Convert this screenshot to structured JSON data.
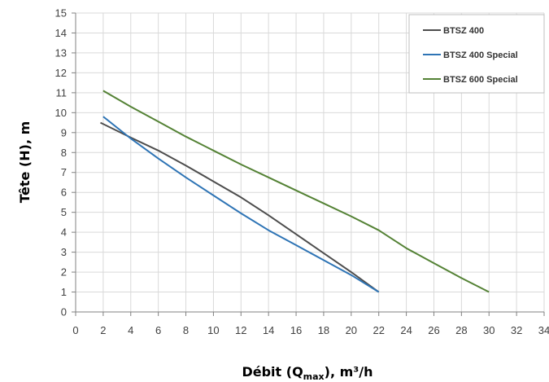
{
  "chart_data": {
    "type": "line",
    "title": "",
    "ylabel": "Tête (H), m",
    "xlabel": {
      "prefix": "Débit (Q",
      "subscript": "max",
      "suffix": "), m³/h"
    },
    "xlim": [
      0,
      34
    ],
    "ylim": [
      0,
      15
    ],
    "x_ticks": [
      "0",
      "2",
      "4",
      "6",
      "8",
      "10",
      "12",
      "14",
      "16",
      "18",
      "20",
      "22",
      "24",
      "26",
      "28",
      "30",
      "32",
      "34"
    ],
    "y_ticks": [
      "0",
      "1",
      "2",
      "3",
      "4",
      "5",
      "6",
      "7",
      "8",
      "9",
      "10",
      "11",
      "12",
      "13",
      "14",
      "15"
    ],
    "grid": "both",
    "legend_position": "top-right",
    "series": [
      {
        "name": "BTSZ 400",
        "color": "#4d4d4d",
        "points": [
          [
            1.8,
            9.5
          ],
          [
            4,
            8.75
          ],
          [
            6,
            8.1
          ],
          [
            8,
            7.35
          ],
          [
            10,
            6.55
          ],
          [
            12,
            5.75
          ],
          [
            14,
            4.85
          ],
          [
            16,
            3.9
          ],
          [
            18,
            2.95
          ],
          [
            20,
            2.0
          ],
          [
            22,
            1.0
          ]
        ]
      },
      {
        "name": "BTSZ 400 Special",
        "color": "#2e74b5",
        "points": [
          [
            2,
            9.8
          ],
          [
            4,
            8.7
          ],
          [
            6,
            7.7
          ],
          [
            8,
            6.75
          ],
          [
            10,
            5.85
          ],
          [
            12,
            4.95
          ],
          [
            14,
            4.1
          ],
          [
            16,
            3.35
          ],
          [
            18,
            2.6
          ],
          [
            20,
            1.85
          ],
          [
            22,
            1.0
          ]
        ]
      },
      {
        "name": "BTSZ 600 Special",
        "color": "#548235",
        "points": [
          [
            2,
            11.1
          ],
          [
            4,
            10.3
          ],
          [
            6,
            9.55
          ],
          [
            8,
            8.8
          ],
          [
            10,
            8.1
          ],
          [
            12,
            7.4
          ],
          [
            14,
            6.75
          ],
          [
            16,
            6.1
          ],
          [
            18,
            5.45
          ],
          [
            20,
            4.8
          ],
          [
            22,
            4.1
          ],
          [
            24,
            3.2
          ],
          [
            26,
            2.45
          ],
          [
            28,
            1.7
          ],
          [
            30,
            1.0
          ]
        ]
      }
    ]
  }
}
